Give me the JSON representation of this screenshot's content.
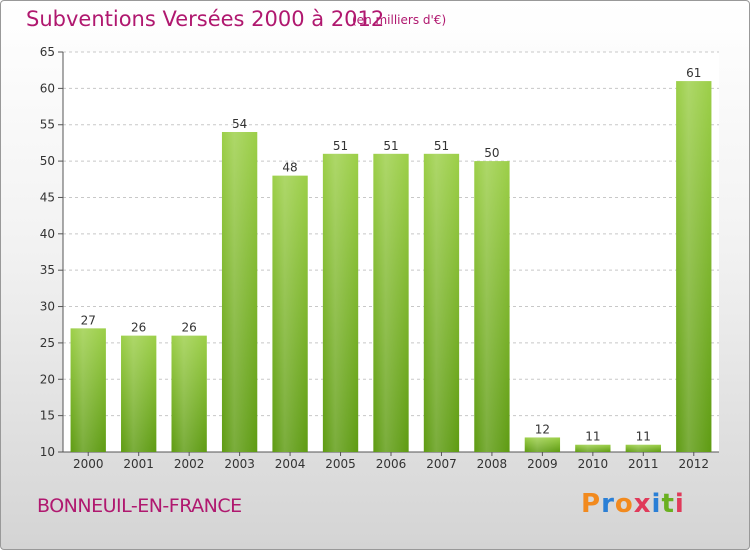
{
  "header": {
    "title": "Subventions Versées 2000 à 2012",
    "unit": "(en milliers d'€)"
  },
  "footer": {
    "commune": "BONNEUIL-EN-FRANCE",
    "logo": {
      "text": "Proxiti",
      "colors": [
        "#f28a1e",
        "#2a7fd6",
        "#f28a1e",
        "#e03a5a",
        "#2a7fd6",
        "#6ab020",
        "#e03a5a"
      ]
    }
  },
  "colors": {
    "bar_top": "#9ccf48",
    "bar_bottom": "#5e9b12",
    "title": "#b0186f"
  },
  "chart_data": {
    "type": "bar",
    "title": "Subventions Versées 2000 à 2012",
    "subtitle": "(en milliers d'€)",
    "categories": [
      "2000",
      "2001",
      "2002",
      "2003",
      "2004",
      "2005",
      "2006",
      "2007",
      "2008",
      "2009",
      "2010",
      "2011",
      "2012"
    ],
    "values": [
      27,
      26,
      26,
      54,
      48,
      51,
      51,
      51,
      50,
      12,
      11,
      11,
      61
    ],
    "ylim": [
      10,
      65
    ],
    "yticks": [
      10,
      15,
      20,
      25,
      30,
      35,
      40,
      45,
      50,
      55,
      60,
      65
    ],
    "grid": true,
    "legend": false
  }
}
